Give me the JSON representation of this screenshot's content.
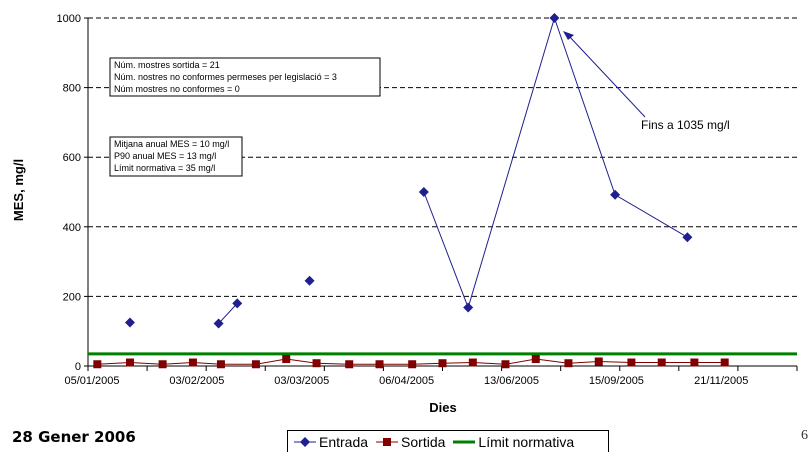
{
  "chart_data": {
    "type": "line",
    "xlabel": "Dies",
    "ylabel": "MES, mg/l",
    "ylim": [
      0,
      1000
    ],
    "y_ticks": [
      0,
      200,
      400,
      600,
      800,
      1000
    ],
    "x_tick_labels": [
      "05/01/2005",
      "03/02/2005",
      "03/03/2005",
      "06/04/2005",
      "13/06/2005",
      "15/09/2005",
      "21/11/2005"
    ],
    "grid": "horizontal dashed",
    "legend_position": "bottom",
    "series": [
      {
        "name": "Entrada",
        "color": "#1F1F8F",
        "marker": "diamond",
        "points": [
          {
            "x": "2005-01-19",
            "y": 125
          },
          {
            "x": "2005-02-26",
            "y": 122
          },
          {
            "x": "2005-03-06",
            "y": 180
          },
          {
            "x": "2005-04-06",
            "y": 245
          },
          {
            "x": "2005-05-25",
            "y": 500
          },
          {
            "x": "2005-06-13",
            "y": 168
          },
          {
            "x": "2005-07-20",
            "y": 1035
          },
          {
            "x": "2005-08-15",
            "y": 492
          },
          {
            "x": "2005-09-15",
            "y": 370
          }
        ],
        "connected_segments": [
          [
            1,
            2
          ],
          [
            4,
            5,
            6,
            7,
            8
          ]
        ]
      },
      {
        "name": "Sortida",
        "color": "#800000",
        "marker": "square",
        "points": [
          {
            "x": "2005-01-05",
            "y": 5
          },
          {
            "x": "2005-01-19",
            "y": 10
          },
          {
            "x": "2005-02-02",
            "y": 5
          },
          {
            "x": "2005-02-15",
            "y": 10
          },
          {
            "x": "2005-02-27",
            "y": 5
          },
          {
            "x": "2005-03-14",
            "y": 5
          },
          {
            "x": "2005-03-27",
            "y": 20
          },
          {
            "x": "2005-04-09",
            "y": 8
          },
          {
            "x": "2005-04-23",
            "y": 5
          },
          {
            "x": "2005-05-06",
            "y": 5
          },
          {
            "x": "2005-05-20",
            "y": 5
          },
          {
            "x": "2005-06-02",
            "y": 8
          },
          {
            "x": "2005-06-15",
            "y": 10
          },
          {
            "x": "2005-06-29",
            "y": 5
          },
          {
            "x": "2005-07-12",
            "y": 20
          },
          {
            "x": "2005-07-26",
            "y": 8
          },
          {
            "x": "2005-08-08",
            "y": 13
          },
          {
            "x": "2005-08-22",
            "y": 10
          },
          {
            "x": "2005-09-04",
            "y": 10
          },
          {
            "x": "2005-09-18",
            "y": 10
          },
          {
            "x": "2005-10-01",
            "y": 10
          }
        ]
      },
      {
        "name": "Límit normativa",
        "color": "#008000",
        "points": [
          {
            "x": "2005-01-05",
            "y": 35
          },
          {
            "x": "2005-10-01",
            "y": 35
          }
        ]
      }
    ],
    "annotations": {
      "box1": [
        "Núm. mostres sortida = 21",
        "Núm. nostres no conformes permeses per legislació = 3",
        "Núm mostres no conformes = 0"
      ],
      "box2": [
        "Mitjana anual MES = 10 mg/l",
        "P90 anual MES = 13 mg/l",
        "Límit normativa = 35 mg/l"
      ],
      "callout": "Fins a 1035 mg/l"
    }
  },
  "footer": {
    "date": "28 Gener 2006",
    "page": "6"
  }
}
